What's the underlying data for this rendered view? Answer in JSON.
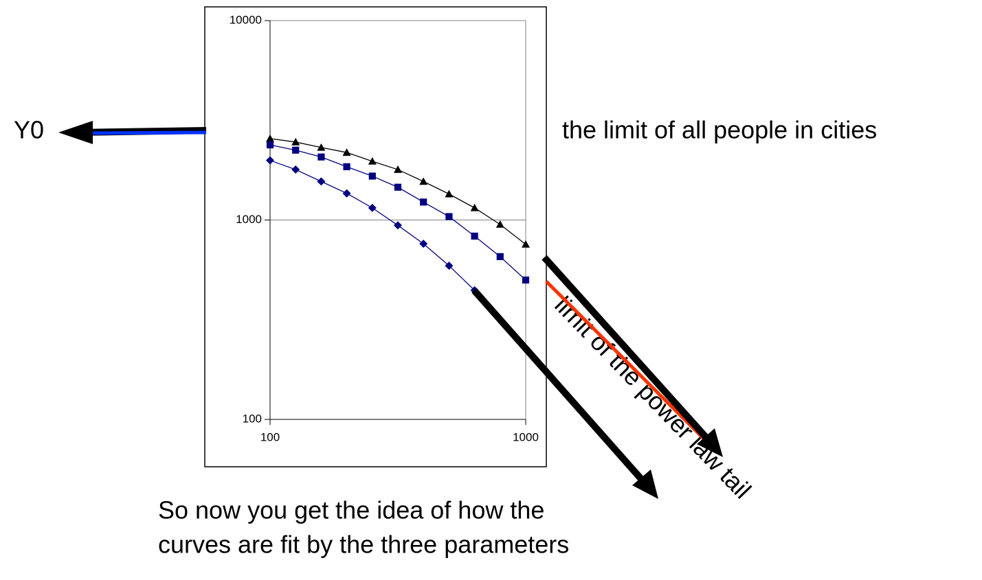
{
  "chart_data": {
    "type": "line",
    "xscale": "log",
    "yscale": "log",
    "xlim": [
      100,
      1000
    ],
    "ylim": [
      100,
      10000
    ],
    "xticks": [
      100,
      1000
    ],
    "yticks": [
      100,
      1000,
      10000
    ],
    "grid": true,
    "series": [
      {
        "color": "#000000",
        "marker": "triangle",
        "x": [
          100,
          125.9,
          158.5,
          199.5,
          251.2,
          316.2,
          398.1,
          501.2,
          631,
          794.3,
          1000
        ],
        "values": [
          2560,
          2460,
          2310,
          2180,
          1970,
          1790,
          1560,
          1350,
          1150,
          950,
          755
        ]
      },
      {
        "color": "#000080",
        "marker": "square",
        "x": [
          100,
          125.9,
          158.5,
          199.5,
          251.2,
          316.2,
          398.1,
          501.2,
          631,
          794.3,
          1000
        ],
        "values": [
          2380,
          2240,
          2070,
          1850,
          1660,
          1460,
          1230,
          1040,
          830,
          655,
          500
        ]
      },
      {
        "color": "#000080",
        "marker": "diamond",
        "x": [
          100,
          125.9,
          158.5,
          199.5,
          251.2,
          316.2,
          398.1,
          501.2,
          631
        ],
        "values": [
          1990,
          1790,
          1560,
          1360,
          1150,
          940,
          760,
          590,
          444
        ]
      }
    ],
    "annotations": [
      "Y0",
      "the limit of all people in cities",
      "limit of the power law tail",
      "So now you get the idea of how the",
      "curves are fit by the three parameters"
    ]
  }
}
